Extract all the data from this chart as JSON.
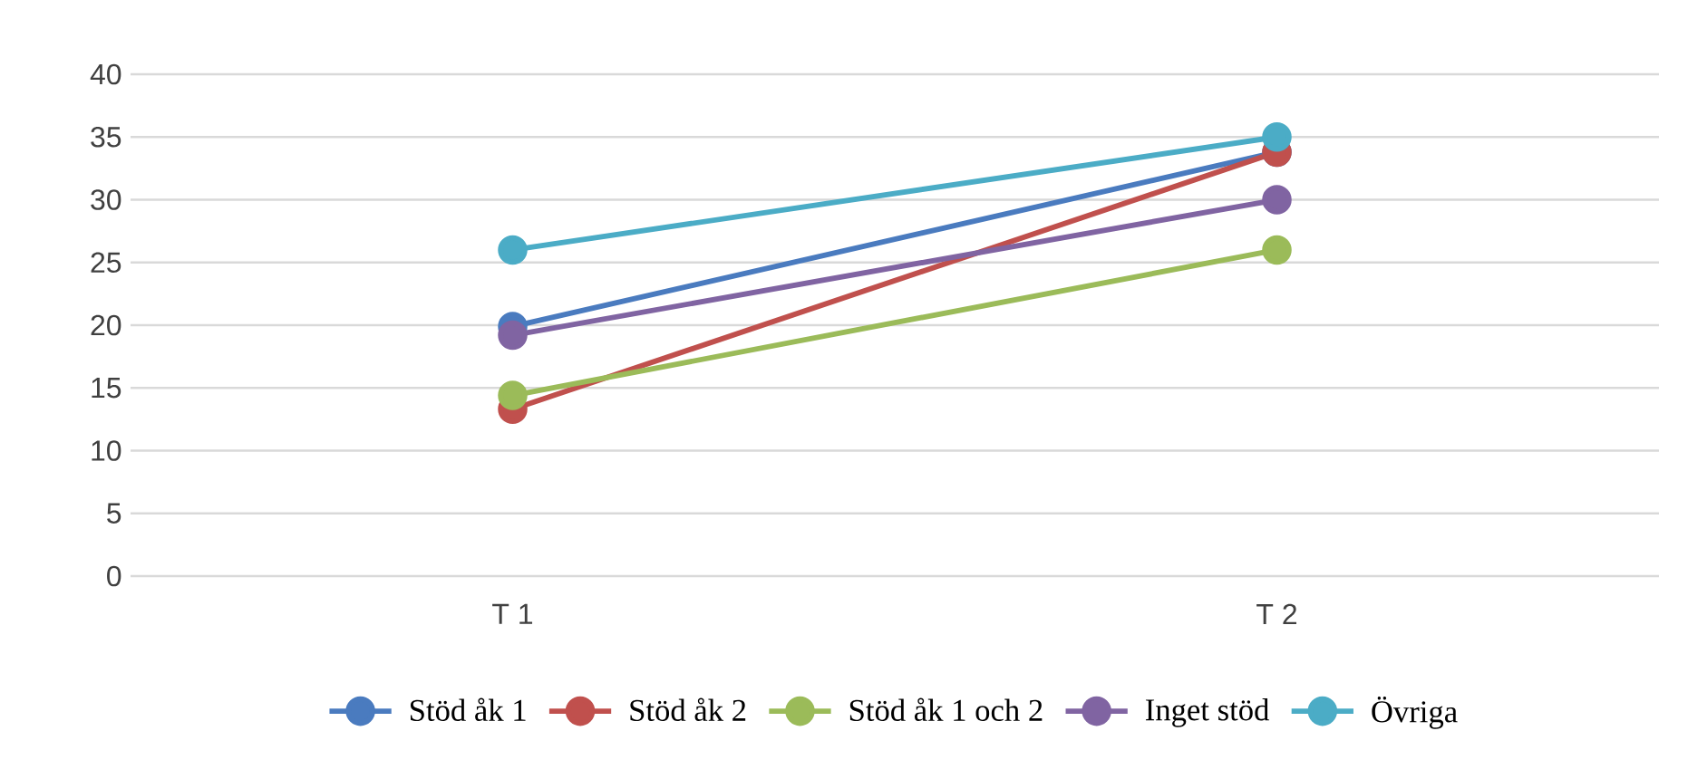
{
  "chart_data": {
    "type": "line",
    "categories": [
      "T 1",
      "T 2"
    ],
    "series": [
      {
        "name": "Stöd åk 1",
        "color": "#4a7bbf",
        "values": [
          19.9,
          33.8
        ]
      },
      {
        "name": "Stöd åk 2",
        "color": "#c0504d",
        "values": [
          13.3,
          33.8
        ]
      },
      {
        "name": "Stöd åk 1 och 2",
        "color": "#9bbb59",
        "values": [
          14.4,
          26.0
        ]
      },
      {
        "name": "Inget stöd",
        "color": "#8064a2",
        "values": [
          19.2,
          30.0
        ]
      },
      {
        "name": "Övriga",
        "color": "#4bacc6",
        "values": [
          26.0,
          35.0
        ]
      }
    ],
    "ylim": [
      0,
      40
    ],
    "yticks": [
      0,
      5,
      10,
      15,
      20,
      25,
      30,
      35,
      40
    ],
    "grid": "y",
    "legend": "bottom",
    "marker": "circle",
    "line_style": "solid"
  }
}
